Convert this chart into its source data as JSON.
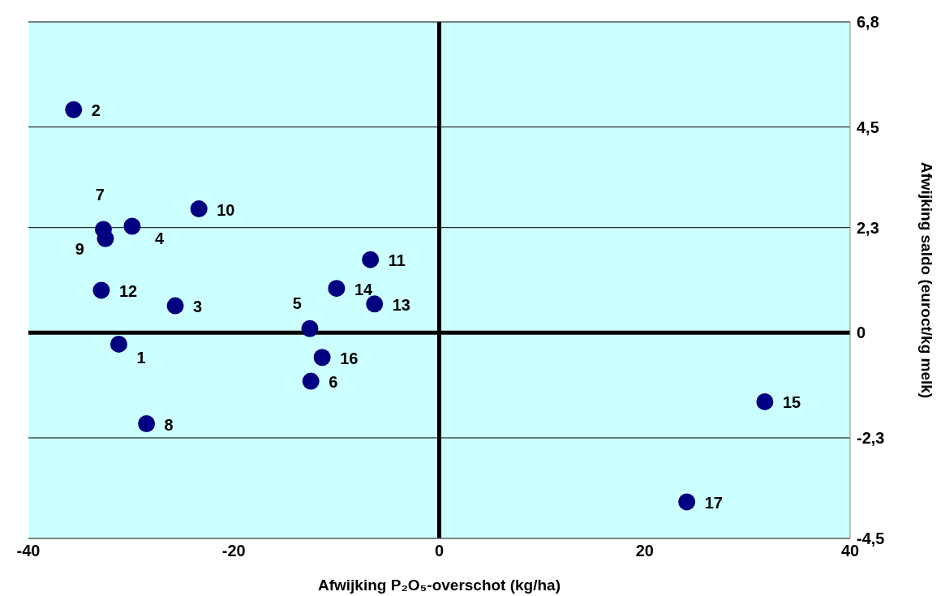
{
  "chart_data": {
    "type": "scatter",
    "xlabel": "Afwijking P₂O₅-overschot (kg/ha)",
    "ylabel": "Afwijking saldo (euroct/kg melk)",
    "x": [
      -31.2,
      -35.6,
      -25.7,
      -29.9,
      -12.6,
      -12.5,
      -32.7,
      -28.5,
      -32.5,
      -23.4,
      -6.7,
      -32.9,
      -6.3,
      -10.0,
      31.7,
      -11.4,
      24.1
    ],
    "series": [
      {
        "color": "#000080",
        "values": [
          -0.25,
          4.88,
          0.59,
          2.33,
          0.09,
          -1.06,
          2.26,
          -1.99,
          2.06,
          2.71,
          1.6,
          0.93,
          0.63,
          0.97,
          -1.51,
          -0.54,
          -3.7
        ]
      }
    ],
    "annotations": [
      {
        "text": "1",
        "x": -31.2,
        "y": -0.25
      },
      {
        "text": "2",
        "x": -35.6,
        "y": 4.88
      },
      {
        "text": "3",
        "x": -25.7,
        "y": 0.59
      },
      {
        "text": "4",
        "x": -29.9,
        "y": 2.33
      },
      {
        "text": "5",
        "x": -12.6,
        "y": 0.09
      },
      {
        "text": "6",
        "x": -12.5,
        "y": -1.06
      },
      {
        "text": "7",
        "x": -32.7,
        "y": 2.26
      },
      {
        "text": "8",
        "x": -28.5,
        "y": -1.99
      },
      {
        "text": "9",
        "x": -32.5,
        "y": 2.06
      },
      {
        "text": "10",
        "x": -23.4,
        "y": 2.71
      },
      {
        "text": "11",
        "x": -6.7,
        "y": 1.6
      },
      {
        "text": "12",
        "x": -32.9,
        "y": 0.93
      },
      {
        "text": "13",
        "x": -6.3,
        "y": 0.63
      },
      {
        "text": "14",
        "x": -10.0,
        "y": 0.97
      },
      {
        "text": "15",
        "x": 31.7,
        "y": -1.51
      },
      {
        "text": "16",
        "x": -11.4,
        "y": -0.54
      },
      {
        "text": "17",
        "x": 24.1,
        "y": -3.7
      }
    ],
    "xlim": [
      -40,
      40
    ],
    "xticks": [
      -40,
      -20,
      0,
      20,
      40
    ],
    "ylim": [
      -4.5,
      6.8
    ],
    "yticks": [
      {
        "value": -4.5,
        "label": "-4,5"
      },
      {
        "value": -2.3,
        "label": "-2,3"
      },
      0,
      {
        "value": 2.3,
        "label": "2,3"
      },
      {
        "value": 4.5,
        "label": "4,5"
      },
      {
        "value": 6.8,
        "label": "6,8"
      }
    ],
    "ref_lines": [
      {
        "axis": "x",
        "value": 0,
        "color": "#000000"
      }
    ],
    "grid": "y",
    "legend": false,
    "marker": "circle"
  }
}
